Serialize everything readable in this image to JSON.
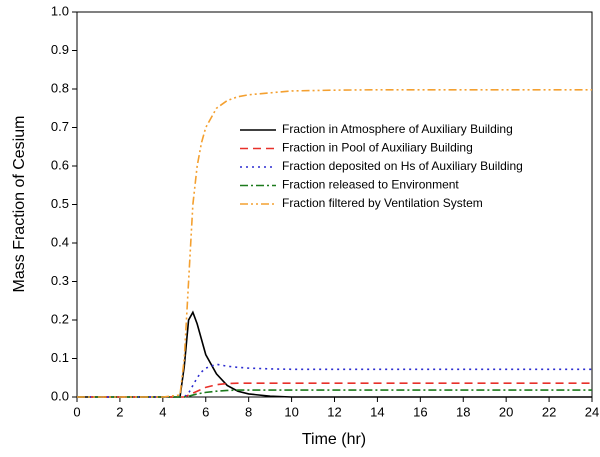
{
  "chart_data": {
    "type": "line",
    "x_label": "Time (hr)",
    "y_label": "Mass Fraction of Cesium",
    "x": [
      0,
      1,
      2,
      3,
      4,
      4.8,
      5,
      5.2,
      5.4,
      5.6,
      5.8,
      6,
      6.5,
      7,
      7.5,
      8,
      9,
      10,
      12,
      14,
      16,
      18,
      20,
      22,
      24
    ],
    "series": [
      {
        "name": "Fraction in Atmosphere of Auxiliary Building",
        "color": "#000000",
        "dash": "solid",
        "values": [
          0,
          0,
          0,
          0,
          0,
          0,
          0.08,
          0.2,
          0.22,
          0.19,
          0.15,
          0.11,
          0.06,
          0.03,
          0.015,
          0.008,
          0.002,
          0,
          0,
          0,
          0,
          0,
          0,
          0,
          0
        ]
      },
      {
        "name": "Fraction in Pool of Auxiliary Building",
        "color": "#e8302a",
        "dash": "dashed",
        "values": [
          0,
          0,
          0,
          0,
          0,
          0,
          0,
          0.005,
          0.01,
          0.015,
          0.02,
          0.025,
          0.032,
          0.035,
          0.036,
          0.036,
          0.036,
          0.036,
          0.036,
          0.036,
          0.036,
          0.036,
          0.036,
          0.036,
          0.036
        ]
      },
      {
        "name": "Fraction deposited on Hs of Auxiliary Building",
        "color": "#2b2bd0",
        "dash": "dotted",
        "values": [
          0,
          0,
          0,
          0,
          0,
          0,
          0,
          0.01,
          0.03,
          0.05,
          0.065,
          0.075,
          0.085,
          0.08,
          0.077,
          0.075,
          0.073,
          0.072,
          0.072,
          0.072,
          0.072,
          0.072,
          0.072,
          0.072,
          0.072
        ]
      },
      {
        "name": "Fraction released to Environment",
        "color": "#1c7a1c",
        "dash": "dashdot",
        "values": [
          0,
          0,
          0,
          0,
          0,
          0,
          0,
          0.002,
          0.005,
          0.008,
          0.01,
          0.012,
          0.015,
          0.017,
          0.018,
          0.018,
          0.018,
          0.018,
          0.018,
          0.018,
          0.018,
          0.018,
          0.018,
          0.018,
          0.018
        ]
      },
      {
        "name": "Fraction filtered by Ventilation System",
        "color": "#f4a030",
        "dash": "dashdotdot",
        "values": [
          0,
          0,
          0,
          0,
          0,
          0.005,
          0.1,
          0.3,
          0.5,
          0.6,
          0.66,
          0.7,
          0.75,
          0.77,
          0.78,
          0.785,
          0.79,
          0.795,
          0.797,
          0.798,
          0.798,
          0.798,
          0.798,
          0.798,
          0.798
        ]
      }
    ],
    "xlim": [
      0,
      24
    ],
    "xticks": [
      0,
      2,
      4,
      6,
      8,
      10,
      12,
      14,
      16,
      18,
      20,
      22,
      24
    ],
    "ylim": [
      0,
      1
    ],
    "yticks": [
      {
        "value": 0,
        "label": "0.0"
      },
      0.1,
      0.2,
      0.3,
      0.4,
      0.5,
      0.6,
      0.7,
      0.8,
      0.9,
      {
        "value": 1,
        "label": "1.0"
      }
    ],
    "grid": false,
    "legend": "upper-center"
  }
}
